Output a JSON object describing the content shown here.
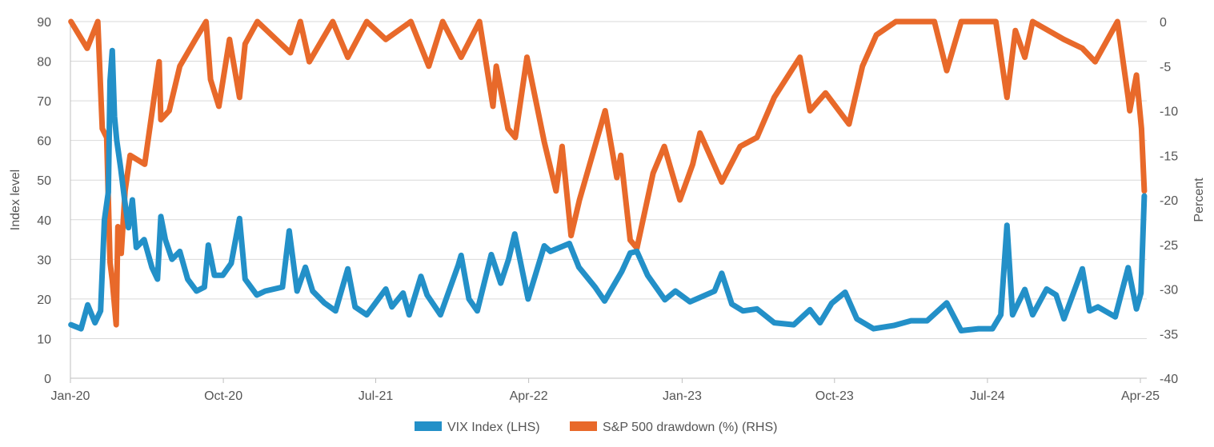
{
  "chart_data": {
    "type": "line",
    "title": "",
    "xlabel": "",
    "ylabel_left": "Index level",
    "ylabel_right": "Percent",
    "xlim": [
      "2020-01-01",
      "2025-04-01"
    ],
    "ylim_left": [
      0,
      90
    ],
    "ylim_right": [
      -40,
      0
    ],
    "grid": true,
    "legend_position": "bottom",
    "x_ticks": [
      {
        "label": "Jan-20",
        "date": "2020-01-01"
      },
      {
        "label": "Oct-20",
        "date": "2020-10-01"
      },
      {
        "label": "Jul-21",
        "date": "2021-07-01"
      },
      {
        "label": "Apr-22",
        "date": "2022-04-01"
      },
      {
        "label": "Jan-23",
        "date": "2023-01-01"
      },
      {
        "label": "Oct-23",
        "date": "2023-10-01"
      },
      {
        "label": "Jul-24",
        "date": "2024-07-01"
      },
      {
        "label": "Apr-25",
        "date": "2025-04-01"
      }
    ],
    "y_ticks_left": [
      "0",
      "10",
      "20",
      "30",
      "40",
      "50",
      "60",
      "70",
      "80",
      "90"
    ],
    "y_ticks_right": [
      "-40",
      "-35",
      "-30",
      "-25",
      "-20",
      "-15",
      "-10",
      "-5",
      "0"
    ],
    "series": [
      {
        "name": "VIX Index (LHS)",
        "axis": "left",
        "color": "#2390c8",
        "points": [
          [
            "2020-01-02",
            13.5
          ],
          [
            "2020-01-20",
            12.5
          ],
          [
            "2020-02-01",
            18.5
          ],
          [
            "2020-02-14",
            14
          ],
          [
            "2020-02-24",
            17
          ],
          [
            "2020-03-02",
            40
          ],
          [
            "2020-03-09",
            47
          ],
          [
            "2020-03-12",
            75
          ],
          [
            "2020-03-16",
            82.7
          ],
          [
            "2020-03-20",
            66
          ],
          [
            "2020-03-24",
            60
          ],
          [
            "2020-03-31",
            53
          ],
          [
            "2020-04-07",
            45
          ],
          [
            "2020-04-14",
            38
          ],
          [
            "2020-04-21",
            45
          ],
          [
            "2020-04-28",
            33
          ],
          [
            "2020-05-12",
            35
          ],
          [
            "2020-05-26",
            28
          ],
          [
            "2020-06-05",
            25
          ],
          [
            "2020-06-11",
            40.8
          ],
          [
            "2020-06-19",
            35
          ],
          [
            "2020-07-01",
            30
          ],
          [
            "2020-07-15",
            32
          ],
          [
            "2020-07-29",
            25
          ],
          [
            "2020-08-14",
            22
          ],
          [
            "2020-08-28",
            23
          ],
          [
            "2020-09-04",
            33.6
          ],
          [
            "2020-09-15",
            26
          ],
          [
            "2020-09-30",
            26
          ],
          [
            "2020-10-15",
            29
          ],
          [
            "2020-10-30",
            40.3
          ],
          [
            "2020-11-09",
            25
          ],
          [
            "2020-11-30",
            21
          ],
          [
            "2020-12-15",
            22
          ],
          [
            "2021-01-15",
            23
          ],
          [
            "2021-01-27",
            37.2
          ],
          [
            "2021-02-10",
            22
          ],
          [
            "2021-02-25",
            28
          ],
          [
            "2021-03-10",
            22
          ],
          [
            "2021-03-31",
            19
          ],
          [
            "2021-04-20",
            17
          ],
          [
            "2021-05-12",
            27.6
          ],
          [
            "2021-05-25",
            18
          ],
          [
            "2021-06-15",
            16
          ],
          [
            "2021-07-19",
            22.5
          ],
          [
            "2021-07-30",
            18
          ],
          [
            "2021-08-19",
            21.5
          ],
          [
            "2021-08-30",
            16
          ],
          [
            "2021-09-20",
            25.7
          ],
          [
            "2021-10-01",
            21
          ],
          [
            "2021-10-25",
            16
          ],
          [
            "2021-11-26",
            28.6
          ],
          [
            "2021-12-01",
            31
          ],
          [
            "2021-12-15",
            20
          ],
          [
            "2021-12-30",
            17
          ],
          [
            "2022-01-24",
            31.2
          ],
          [
            "2022-02-10",
            24
          ],
          [
            "2022-02-24",
            30
          ],
          [
            "2022-03-07",
            36.4
          ],
          [
            "2022-03-31",
            20
          ],
          [
            "2022-04-29",
            33.4
          ],
          [
            "2022-05-10",
            32
          ],
          [
            "2022-06-13",
            34
          ],
          [
            "2022-06-30",
            28
          ],
          [
            "2022-07-29",
            23
          ],
          [
            "2022-08-15",
            19.5
          ],
          [
            "2022-09-15",
            27
          ],
          [
            "2022-09-30",
            31.6
          ],
          [
            "2022-10-12",
            32
          ],
          [
            "2022-10-31",
            26
          ],
          [
            "2022-11-15",
            23
          ],
          [
            "2022-12-01",
            19.8
          ],
          [
            "2022-12-20",
            22
          ],
          [
            "2023-01-15",
            19.3
          ],
          [
            "2023-02-28",
            22
          ],
          [
            "2023-03-13",
            26.5
          ],
          [
            "2023-03-31",
            18.7
          ],
          [
            "2023-04-20",
            17
          ],
          [
            "2023-05-15",
            17.5
          ],
          [
            "2023-06-15",
            14
          ],
          [
            "2023-07-20",
            13.5
          ],
          [
            "2023-08-18",
            17.3
          ],
          [
            "2023-09-05",
            14
          ],
          [
            "2023-09-26",
            18.9
          ],
          [
            "2023-10-20",
            21.7
          ],
          [
            "2023-11-10",
            15
          ],
          [
            "2023-12-10",
            12.5
          ],
          [
            "2024-01-15",
            13.3
          ],
          [
            "2024-02-15",
            14.5
          ],
          [
            "2024-03-15",
            14.5
          ],
          [
            "2024-04-19",
            19
          ],
          [
            "2024-05-15",
            12
          ],
          [
            "2024-06-15",
            12.5
          ],
          [
            "2024-07-10",
            12.5
          ],
          [
            "2024-07-25",
            16
          ],
          [
            "2024-08-05",
            38.6
          ],
          [
            "2024-08-15",
            16
          ],
          [
            "2024-09-06",
            22.4
          ],
          [
            "2024-09-20",
            16
          ],
          [
            "2024-10-15",
            22.5
          ],
          [
            "2024-11-01",
            21
          ],
          [
            "2024-11-15",
            15
          ],
          [
            "2024-12-18",
            27.6
          ],
          [
            "2024-12-31",
            17
          ],
          [
            "2025-01-15",
            18
          ],
          [
            "2025-02-15",
            15.5
          ],
          [
            "2025-03-10",
            27.9
          ],
          [
            "2025-03-25",
            17.5
          ],
          [
            "2025-04-02",
            21.5
          ],
          [
            "2025-04-08",
            46
          ]
        ]
      },
      {
        "name": "S&P 500 drawdown (%) (RHS)",
        "axis": "right",
        "color": "#e8692a",
        "points": [
          [
            "2020-01-02",
            0
          ],
          [
            "2020-01-31",
            -3
          ],
          [
            "2020-02-19",
            0
          ],
          [
            "2020-02-27",
            -12
          ],
          [
            "2020-03-06",
            -13
          ],
          [
            "2020-03-12",
            -27
          ],
          [
            "2020-03-16",
            -29
          ],
          [
            "2020-03-23",
            -34
          ],
          [
            "2020-03-26",
            -23
          ],
          [
            "2020-04-01",
            -26
          ],
          [
            "2020-04-08",
            -19
          ],
          [
            "2020-04-17",
            -15
          ],
          [
            "2020-05-13",
            -16
          ],
          [
            "2020-06-08",
            -4.5
          ],
          [
            "2020-06-11",
            -11
          ],
          [
            "2020-06-26",
            -10
          ],
          [
            "2020-07-15",
            -5
          ],
          [
            "2020-08-12",
            -2
          ],
          [
            "2020-08-31",
            0
          ],
          [
            "2020-09-08",
            -6.5
          ],
          [
            "2020-09-23",
            -9.5
          ],
          [
            "2020-10-12",
            -2
          ],
          [
            "2020-10-30",
            -8.5
          ],
          [
            "2020-11-09",
            -2.5
          ],
          [
            "2020-12-01",
            0
          ],
          [
            "2021-01-29",
            -3.5
          ],
          [
            "2021-02-16",
            0
          ],
          [
            "2021-03-04",
            -4.5
          ],
          [
            "2021-04-15",
            0
          ],
          [
            "2021-05-12",
            -4
          ],
          [
            "2021-06-15",
            0
          ],
          [
            "2021-07-19",
            -2
          ],
          [
            "2021-09-02",
            0
          ],
          [
            "2021-10-04",
            -5
          ],
          [
            "2021-10-29",
            0
          ],
          [
            "2021-12-01",
            -4
          ],
          [
            "2022-01-03",
            0
          ],
          [
            "2022-01-27",
            -9.5
          ],
          [
            "2022-02-02",
            -5
          ],
          [
            "2022-02-23",
            -12
          ],
          [
            "2022-03-08",
            -13
          ],
          [
            "2022-03-29",
            -4
          ],
          [
            "2022-04-29",
            -13.5
          ],
          [
            "2022-05-20",
            -19
          ],
          [
            "2022-05-31",
            -14
          ],
          [
            "2022-06-16",
            -24
          ],
          [
            "2022-07-01",
            -20
          ],
          [
            "2022-08-16",
            -10
          ],
          [
            "2022-09-06",
            -17.5
          ],
          [
            "2022-09-13",
            -15
          ],
          [
            "2022-09-30",
            -24.5
          ],
          [
            "2022-10-12",
            -25.4
          ],
          [
            "2022-11-10",
            -17
          ],
          [
            "2022-11-30",
            -14
          ],
          [
            "2022-12-28",
            -20
          ],
          [
            "2023-01-20",
            -16
          ],
          [
            "2023-02-02",
            -12.5
          ],
          [
            "2023-03-13",
            -18
          ],
          [
            "2023-04-15",
            -14
          ],
          [
            "2023-05-15",
            -13
          ],
          [
            "2023-06-15",
            -8.5
          ],
          [
            "2023-07-31",
            -4
          ],
          [
            "2023-08-18",
            -10
          ],
          [
            "2023-09-15",
            -8
          ],
          [
            "2023-10-27",
            -11.5
          ],
          [
            "2023-11-20",
            -5
          ],
          [
            "2023-12-15",
            -1.5
          ],
          [
            "2024-01-19",
            0
          ],
          [
            "2024-03-28",
            0
          ],
          [
            "2024-04-19",
            -5.5
          ],
          [
            "2024-05-15",
            0
          ],
          [
            "2024-07-16",
            0
          ],
          [
            "2024-08-05",
            -8.5
          ],
          [
            "2024-08-20",
            -1
          ],
          [
            "2024-09-06",
            -4
          ],
          [
            "2024-09-20",
            0
          ],
          [
            "2024-11-15",
            -2
          ],
          [
            "2024-12-18",
            -3
          ],
          [
            "2025-01-10",
            -4.5
          ],
          [
            "2025-02-19",
            0
          ],
          [
            "2025-03-10",
            -8.5
          ],
          [
            "2025-03-13",
            -10
          ],
          [
            "2025-03-25",
            -6
          ],
          [
            "2025-04-03",
            -12
          ],
          [
            "2025-04-08",
            -19
          ]
        ]
      }
    ]
  }
}
